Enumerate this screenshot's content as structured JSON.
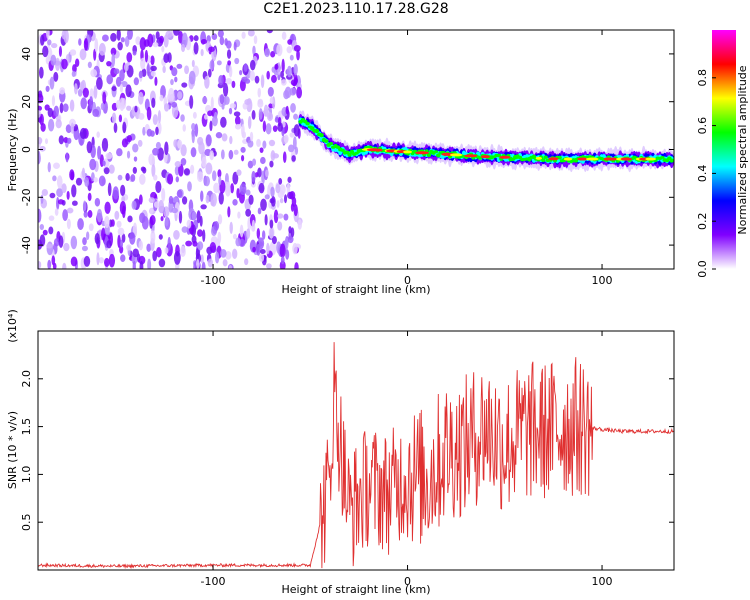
{
  "title": "C2E1.2023.110.17.28.G28",
  "chart_data": [
    {
      "type": "heatmap",
      "xlabel": "Height of straight line (km)",
      "ylabel": "Frequency (Hz)",
      "xlim": [
        -190,
        137
      ],
      "ylim": [
        -50,
        50
      ],
      "xticks": [
        -100,
        0,
        100
      ],
      "yticks": [
        -40,
        -20,
        0,
        20,
        40
      ],
      "grid": false,
      "colorbar": {
        "label": "Normalized spectral amplitude",
        "range": [
          0.0,
          1.0
        ],
        "ticks": [
          0.0,
          0.2,
          0.4,
          0.6,
          0.8
        ],
        "colors": [
          "#ffffff",
          "#8000ff",
          "#0000ff",
          "#00ffff",
          "#00ff00",
          "#ffff00",
          "#ff0000",
          "#ff00ff"
        ]
      },
      "noise_region_x": [
        -190,
        -55
      ],
      "signal_track": {
        "x": [
          -55,
          -50,
          -45,
          -40,
          -35,
          -30,
          -20,
          0,
          20,
          40,
          60,
          80,
          100,
          120,
          137
        ],
        "freq": [
          12,
          10,
          6,
          2,
          0,
          -2,
          0,
          -1,
          -2,
          -3,
          -3.5,
          -4,
          -4,
          -4,
          -4
        ]
      }
    },
    {
      "type": "line",
      "xlabel": "Height of straight line (km)",
      "ylabel": "SNR (10 * v/v)",
      "ylabel_multiplier": "(x10⁴)",
      "xlim": [
        -190,
        137
      ],
      "ylim": [
        0,
        2.5
      ],
      "xticks": [
        -100,
        0,
        100
      ],
      "yticks": [
        0.5,
        1.0,
        1.5,
        2.0
      ],
      "grid": false,
      "series": [
        {
          "color": "#e03030",
          "x": [
            -190,
            -150,
            -100,
            -50,
            -40,
            -38,
            -30,
            -20,
            -10,
            0,
            10,
            20,
            30,
            40,
            50,
            60,
            70,
            80,
            90,
            100,
            110,
            120,
            137
          ],
          "y": [
            0.05,
            0.04,
            0.05,
            0.05,
            0.9,
            1.9,
            0.6,
            0.9,
            0.8,
            1.0,
            0.95,
            1.25,
            1.3,
            1.5,
            1.3,
            1.45,
            1.45,
            1.5,
            1.5,
            1.47,
            1.45,
            1.45,
            1.45
          ]
        }
      ]
    }
  ]
}
